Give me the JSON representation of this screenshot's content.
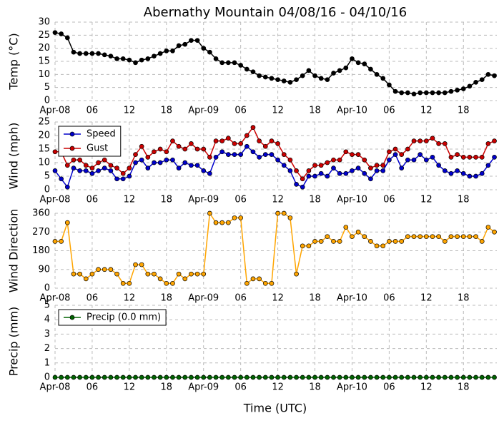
{
  "chart_data": [
    {
      "type": "line",
      "title": "Abernathy Mountain 04/08/16 - 04/10/16",
      "ylabel": "Temp (°C)",
      "categories": [
        "Apr-08",
        null,
        null,
        null,
        null,
        null,
        "06",
        null,
        null,
        null,
        null,
        null,
        "12",
        null,
        null,
        null,
        null,
        null,
        "18",
        null,
        null,
        null,
        null,
        null,
        "Apr-09",
        null,
        null,
        null,
        null,
        null,
        "06",
        null,
        null,
        null,
        null,
        null,
        "12",
        null,
        null,
        null,
        null,
        null,
        "18",
        null,
        null,
        null,
        null,
        null,
        "Apr-10",
        null,
        null,
        null,
        null,
        null,
        "06",
        null,
        null,
        null,
        null,
        null,
        "12",
        null,
        null,
        null,
        null,
        null,
        "18",
        null,
        null,
        null,
        null,
        null
      ],
      "values": [
        26,
        25.5,
        24,
        18.5,
        18,
        18,
        18,
        18,
        17.5,
        17,
        16,
        16,
        15.5,
        14.5,
        15.5,
        16,
        17,
        18,
        19,
        19,
        21,
        21.5,
        23,
        23,
        20,
        18.5,
        16,
        14.5,
        14.5,
        14.5,
        13.5,
        12,
        11,
        9.5,
        9,
        8.5,
        8,
        7.5,
        7,
        8,
        9.5,
        11.5,
        9.5,
        8.5,
        8,
        10.5,
        11.5,
        12.5,
        16,
        14.5,
        14,
        12,
        10,
        8.5,
        6,
        3.5,
        3,
        3,
        2.5,
        3,
        3,
        3,
        3,
        3,
        3.5,
        4,
        4.5,
        5.5,
        7,
        8,
        10,
        9.5
      ],
      "color": "#000000",
      "ylim": [
        0,
        30
      ],
      "yticks": [
        0,
        5,
        10,
        15,
        20,
        25,
        30
      ],
      "grid": true
    },
    {
      "type": "line",
      "ylabel": "Wind (mph)",
      "categories": [
        "Apr-08",
        null,
        null,
        null,
        null,
        null,
        "06",
        null,
        null,
        null,
        null,
        null,
        "12",
        null,
        null,
        null,
        null,
        null,
        "18",
        null,
        null,
        null,
        null,
        null,
        "Apr-09",
        null,
        null,
        null,
        null,
        null,
        "06",
        null,
        null,
        null,
        null,
        null,
        "12",
        null,
        null,
        null,
        null,
        null,
        "18",
        null,
        null,
        null,
        null,
        null,
        "Apr-10",
        null,
        null,
        null,
        null,
        null,
        "06",
        null,
        null,
        null,
        null,
        null,
        "12",
        null,
        null,
        null,
        null,
        null,
        "18",
        null,
        null,
        null,
        null,
        null
      ],
      "series": [
        {
          "name": "Speed",
          "color": "#0000cc",
          "values": [
            7,
            4,
            1,
            8,
            7,
            7,
            6,
            7,
            8,
            7,
            4,
            4,
            5,
            10,
            11,
            8,
            10,
            10,
            11,
            11,
            8,
            10,
            9,
            9,
            7,
            6,
            12,
            14,
            13,
            13,
            13,
            16,
            14,
            12,
            13,
            13,
            11,
            9,
            7,
            2,
            1,
            5,
            5,
            6,
            5,
            8,
            6,
            6,
            7,
            8,
            6,
            4,
            7,
            7,
            11,
            13,
            8,
            11,
            11,
            13,
            11,
            12,
            9,
            7,
            6,
            7,
            6,
            5,
            5,
            6,
            9,
            12
          ]
        },
        {
          "name": "Gust",
          "color": "#cc0000",
          "values": [
            14,
            14,
            9,
            11,
            11,
            9,
            8,
            10,
            11,
            9,
            8,
            6,
            8,
            13,
            16,
            12,
            14,
            15,
            14,
            18,
            16,
            15,
            17,
            15,
            15,
            12,
            18,
            18,
            19,
            17,
            17,
            20,
            23,
            18,
            16,
            18,
            17,
            13,
            11,
            7,
            4,
            7,
            9,
            9,
            10,
            11,
            11,
            14,
            13,
            13,
            11,
            8,
            9,
            9,
            14,
            15,
            13,
            15,
            18,
            18,
            18,
            19,
            17,
            17,
            12,
            13,
            12,
            12,
            12,
            12,
            17,
            18
          ]
        }
      ],
      "ylim": [
        0,
        25
      ],
      "yticks": [
        0,
        5,
        10,
        15,
        20,
        25
      ],
      "grid": true,
      "legend": "upper left"
    },
    {
      "type": "line",
      "ylabel": "Wind Direction",
      "categories": [
        "Apr-08",
        null,
        null,
        null,
        null,
        null,
        "06",
        null,
        null,
        null,
        null,
        null,
        "12",
        null,
        null,
        null,
        null,
        null,
        "18",
        null,
        null,
        null,
        null,
        null,
        "Apr-09",
        null,
        null,
        null,
        null,
        null,
        "06",
        null,
        null,
        null,
        null,
        null,
        "12",
        null,
        null,
        null,
        null,
        null,
        "18",
        null,
        null,
        null,
        null,
        null,
        "Apr-10",
        null,
        null,
        null,
        null,
        null,
        "06",
        null,
        null,
        null,
        null,
        null,
        "12",
        null,
        null,
        null,
        null,
        null,
        "18",
        null,
        null,
        null,
        null,
        null
      ],
      "values": [
        225,
        225,
        315,
        68,
        68,
        45,
        68,
        90,
        90,
        90,
        68,
        23,
        23,
        113,
        113,
        68,
        68,
        45,
        23,
        23,
        68,
        45,
        68,
        68,
        68,
        360,
        315,
        315,
        315,
        338,
        338,
        23,
        45,
        45,
        23,
        23,
        360,
        360,
        338,
        68,
        203,
        203,
        225,
        225,
        248,
        225,
        225,
        293,
        248,
        270,
        248,
        225,
        203,
        203,
        225,
        225,
        225,
        248,
        248,
        248,
        248,
        248,
        248,
        225,
        248,
        248,
        248,
        248,
        248,
        225,
        293,
        270
      ],
      "color": "#ffa500",
      "ylim": [
        0,
        360
      ],
      "yticks": [
        0,
        90,
        180,
        270,
        360
      ],
      "grid": true
    },
    {
      "type": "line",
      "ylabel": "Precip (mm)",
      "xlabel": "Time (UTC)",
      "categories": [
        "Apr-08",
        null,
        null,
        null,
        null,
        null,
        "06",
        null,
        null,
        null,
        null,
        null,
        "12",
        null,
        null,
        null,
        null,
        null,
        "18",
        null,
        null,
        null,
        null,
        null,
        "Apr-09",
        null,
        null,
        null,
        null,
        null,
        "06",
        null,
        null,
        null,
        null,
        null,
        "12",
        null,
        null,
        null,
        null,
        null,
        "18",
        null,
        null,
        null,
        null,
        null,
        "Apr-10",
        null,
        null,
        null,
        null,
        null,
        "06",
        null,
        null,
        null,
        null,
        null,
        "12",
        null,
        null,
        null,
        null,
        null,
        "18",
        null,
        null,
        null,
        null,
        null
      ],
      "series": [
        {
          "name": "Precip (0.0 mm)",
          "color": "#006400",
          "values": [
            0,
            0,
            0,
            0,
            0,
            0,
            0,
            0,
            0,
            0,
            0,
            0,
            0,
            0,
            0,
            0,
            0,
            0,
            0,
            0,
            0,
            0,
            0,
            0,
            0,
            0,
            0,
            0,
            0,
            0,
            0,
            0,
            0,
            0,
            0,
            0,
            0,
            0,
            0,
            0,
            0,
            0,
            0,
            0,
            0,
            0,
            0,
            0,
            0,
            0,
            0,
            0,
            0,
            0,
            0,
            0,
            0,
            0,
            0,
            0,
            0,
            0,
            0,
            0,
            0,
            0,
            0,
            0,
            0,
            0,
            0,
            0
          ]
        }
      ],
      "ylim": [
        0,
        5
      ],
      "yticks": [
        0,
        1,
        2,
        3,
        4,
        5
      ],
      "grid": true,
      "legend": "upper left"
    }
  ]
}
